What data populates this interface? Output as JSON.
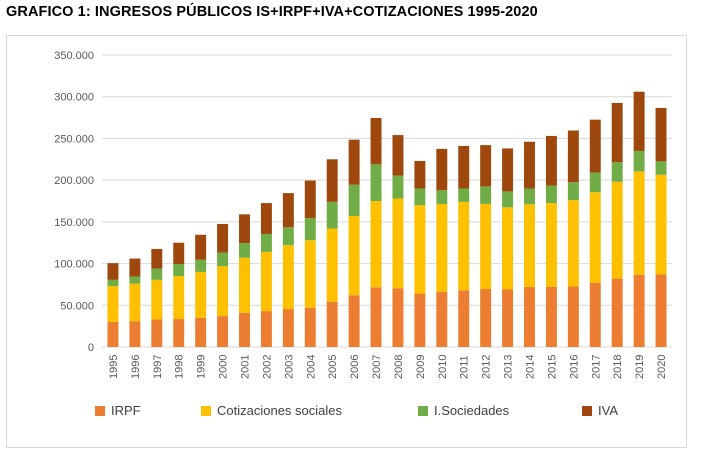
{
  "title": "GRAFICO 1: INGRESOS PÚBLICOS IS+IRPF+IVA+COTIZACIONES 1995-2020",
  "chart_data": {
    "type": "bar",
    "stacked": true,
    "categories": [
      "1995",
      "1996",
      "1997",
      "1998",
      "1999",
      "2000",
      "2001",
      "2002",
      "2003",
      "2004",
      "2005",
      "2006",
      "2007",
      "2008",
      "2009",
      "2010",
      "2011",
      "2012",
      "2013",
      "2014",
      "2015",
      "2016",
      "2017",
      "2018",
      "2019",
      "2020"
    ],
    "series": [
      {
        "name": "IRPF",
        "color": "#ed7d31",
        "values": [
          30000,
          31000,
          33000,
          33500,
          35000,
          37000,
          41000,
          43000,
          45500,
          47000,
          54000,
          62000,
          71500,
          70500,
          64000,
          66000,
          68000,
          69500,
          69000,
          72000,
          72000,
          72500,
          77000,
          82000,
          86500,
          87000
        ]
      },
      {
        "name": "Cotizaciones sociales",
        "color": "#ffc000",
        "values": [
          43000,
          45000,
          47500,
          51500,
          55000,
          60000,
          66000,
          71000,
          76500,
          81000,
          88000,
          95000,
          103500,
          107500,
          106000,
          105500,
          106000,
          102000,
          98500,
          99000,
          100500,
          103500,
          108500,
          116000,
          124000,
          119500
        ]
      },
      {
        "name": "I.Sociedades",
        "color": "#70ad47",
        "values": [
          7500,
          8500,
          13500,
          14500,
          14500,
          16000,
          17500,
          21500,
          21500,
          26500,
          32000,
          37500,
          44000,
          27500,
          20000,
          16500,
          16000,
          21000,
          19000,
          19000,
          21000,
          21500,
          23500,
          23500,
          24500,
          16000
        ]
      },
      {
        "name": "IVA",
        "color": "#9e480e",
        "values": [
          20000,
          21500,
          23500,
          25500,
          30000,
          34500,
          34500,
          37000,
          41000,
          45000,
          51000,
          54000,
          55500,
          48500,
          33000,
          49500,
          51000,
          49500,
          51500,
          56000,
          59500,
          62000,
          63500,
          71000,
          71000,
          64000
        ]
      }
    ],
    "ylim": [
      0,
      350000
    ],
    "yticks": [
      "0",
      "50.000",
      "100.000",
      "150.000",
      "200.000",
      "250.000",
      "300.000",
      "350.000"
    ],
    "grid": true,
    "legend_position": "bottom"
  }
}
